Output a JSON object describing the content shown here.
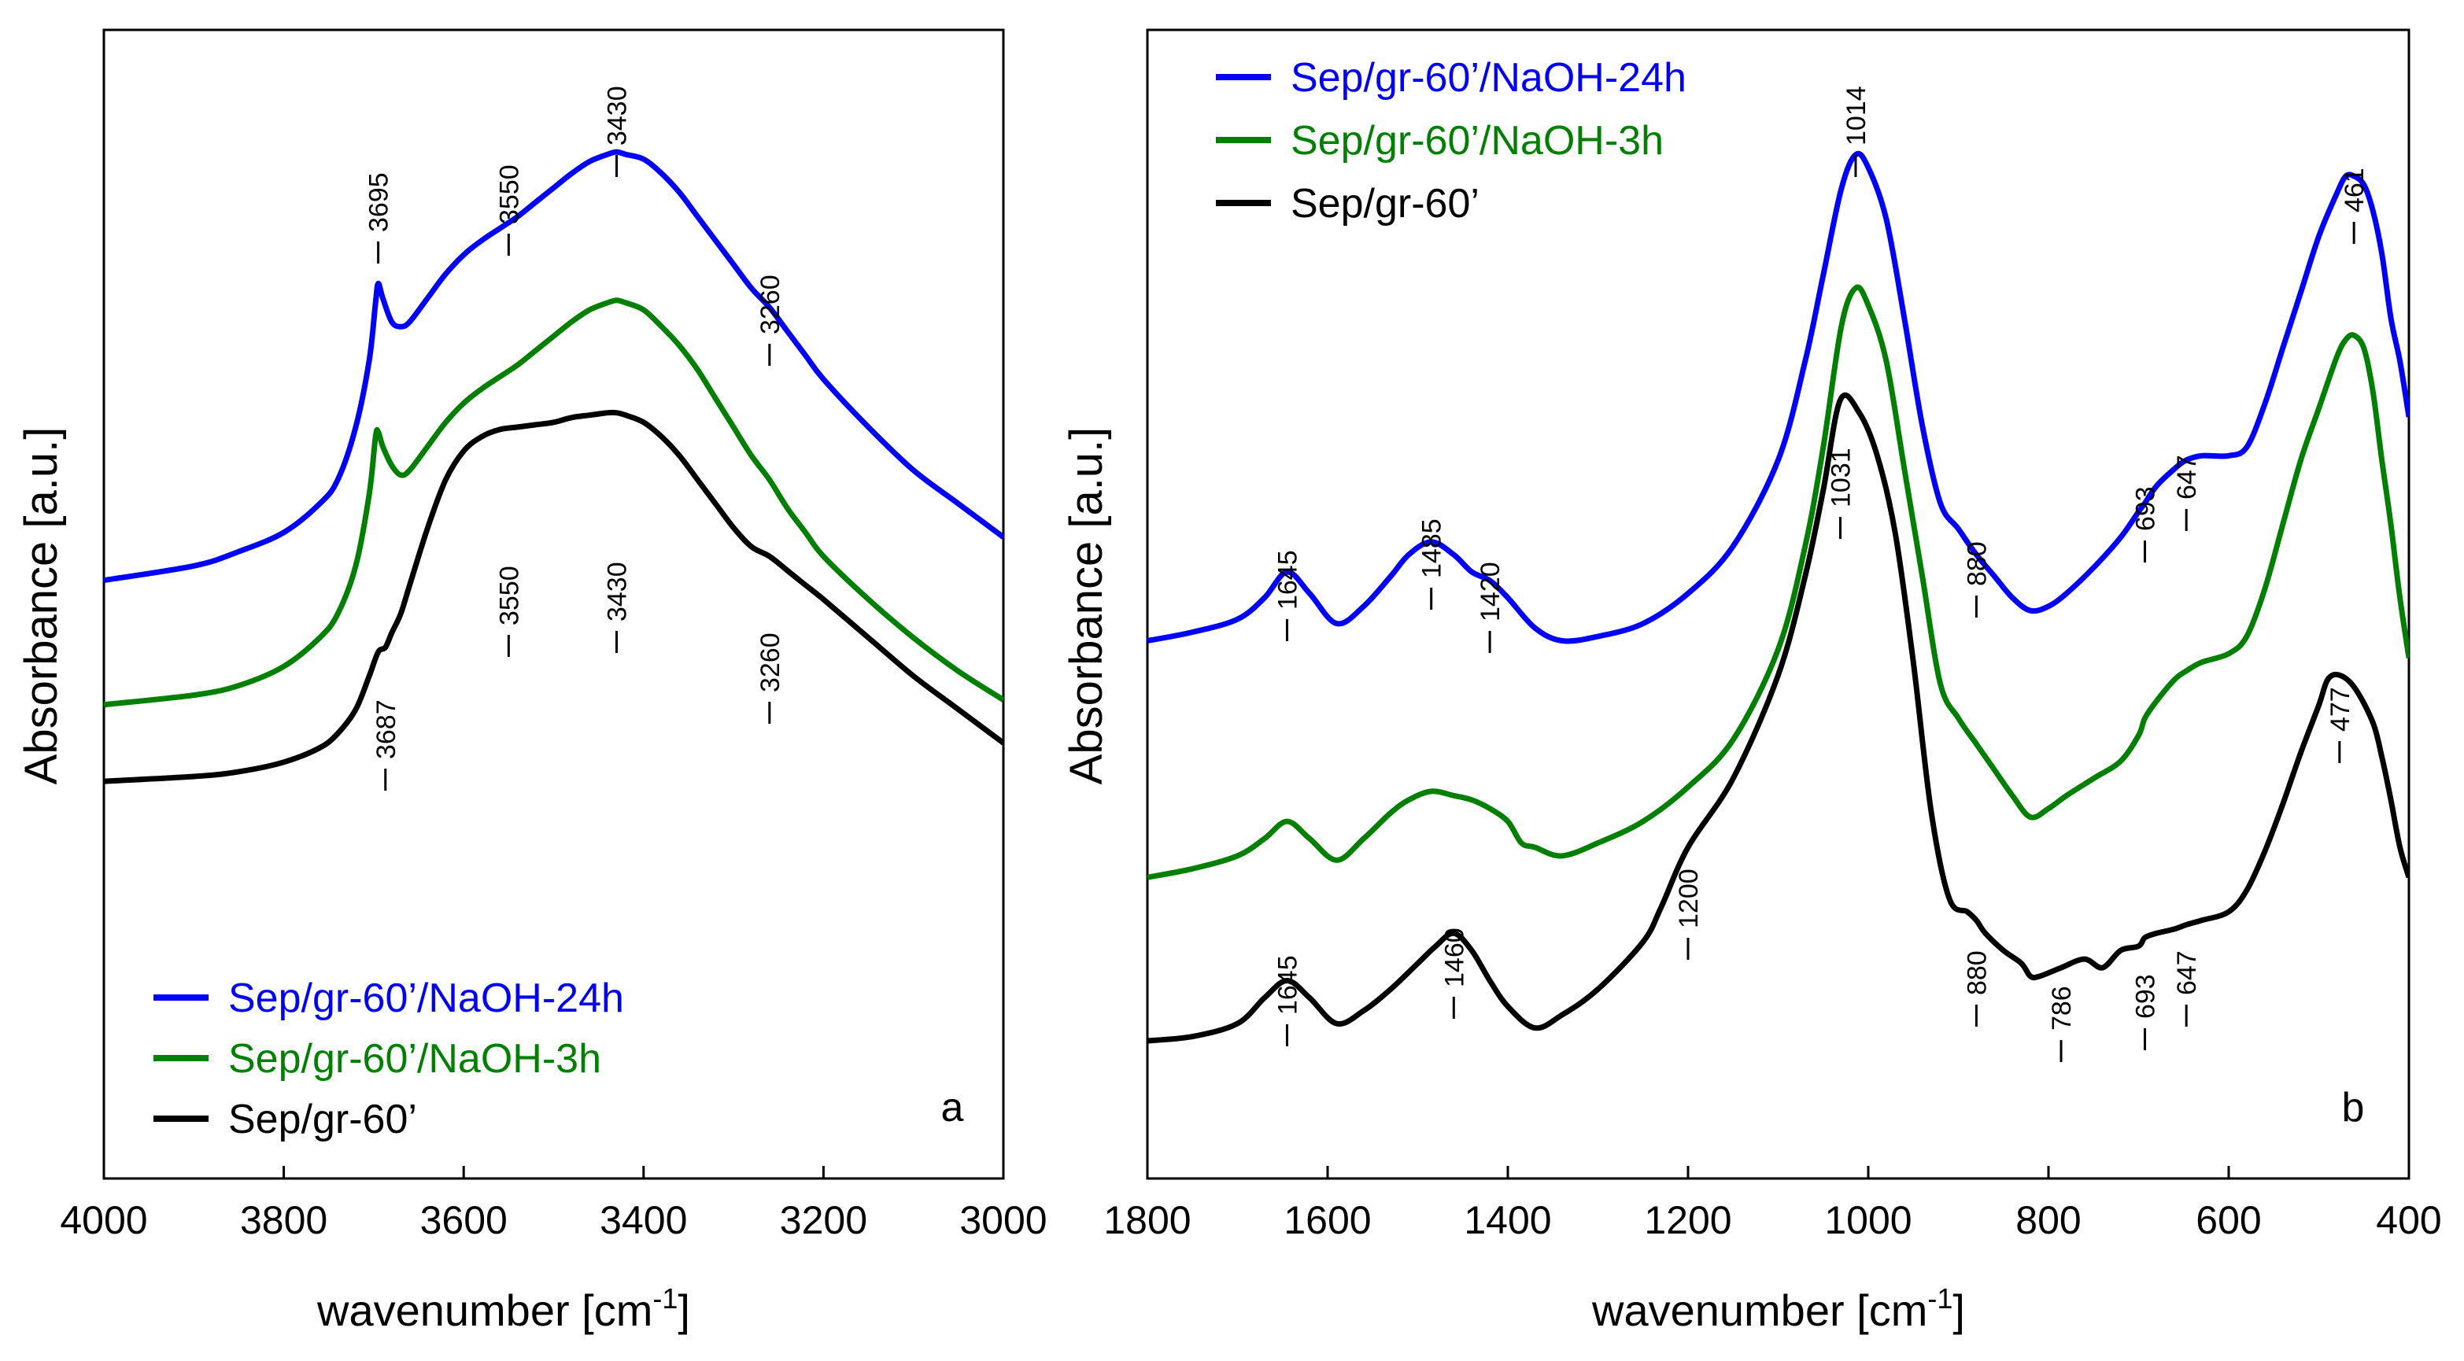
{
  "chart_data": [
    {
      "type": "line",
      "panel_label": "a",
      "xlabel": "wavenumber [cm",
      "xlabel_sup": "-1",
      "xlabel_end": "]",
      "ylabel": "Absorbance [a.u.]",
      "xlim": [
        4000,
        3000
      ],
      "x_reversed": true,
      "y_ticks_shown": false,
      "xticks": [
        "4000",
        "3800",
        "3600",
        "3400",
        "3200",
        "3000"
      ],
      "legend_position": "bottom-left",
      "legend": [
        {
          "label": "Sep/gr-60’/NaOH-24h",
          "color": "#0000ff"
        },
        {
          "label": "Sep/gr-60’/NaOH-3h",
          "color": "#008000"
        },
        {
          "label": "Sep/gr-60’",
          "color": "#000000"
        }
      ],
      "series": [
        {
          "name": "Sep/gr-60’/NaOH-24h",
          "color": "#0000ff",
          "x": [
            4000,
            3900,
            3850,
            3800,
            3760,
            3740,
            3720,
            3705,
            3698,
            3695,
            3690,
            3680,
            3670,
            3660,
            3640,
            3620,
            3600,
            3580,
            3560,
            3540,
            3520,
            3500,
            3480,
            3460,
            3440,
            3430,
            3420,
            3400,
            3380,
            3360,
            3340,
            3320,
            3300,
            3280,
            3260,
            3240,
            3220,
            3200,
            3150,
            3100,
            3050,
            3000
          ],
          "y": [
            0.4,
            0.43,
            0.46,
            0.5,
            0.56,
            0.61,
            0.72,
            0.86,
            0.98,
            1.02,
            0.99,
            0.94,
            0.93,
            0.94,
            0.99,
            1.04,
            1.08,
            1.11,
            1.135,
            1.16,
            1.19,
            1.22,
            1.25,
            1.275,
            1.29,
            1.295,
            1.29,
            1.28,
            1.25,
            1.21,
            1.16,
            1.11,
            1.06,
            1.01,
            0.97,
            0.92,
            0.87,
            0.82,
            0.72,
            0.63,
            0.56,
            0.49
          ]
        },
        {
          "name": "Sep/gr-60’/NaOH-3h",
          "color": "#008000",
          "x": [
            4000,
            3900,
            3850,
            3800,
            3760,
            3740,
            3720,
            3705,
            3698,
            3695,
            3690,
            3680,
            3670,
            3660,
            3640,
            3620,
            3600,
            3580,
            3560,
            3540,
            3520,
            3500,
            3480,
            3460,
            3440,
            3430,
            3420,
            3400,
            3380,
            3360,
            3340,
            3320,
            3300,
            3280,
            3260,
            3240,
            3220,
            3200,
            3150,
            3100,
            3050,
            3000
          ],
          "y": [
            0.14,
            0.16,
            0.18,
            0.22,
            0.28,
            0.33,
            0.43,
            0.58,
            0.7,
            0.71,
            0.68,
            0.64,
            0.62,
            0.63,
            0.68,
            0.73,
            0.77,
            0.8,
            0.825,
            0.85,
            0.88,
            0.91,
            0.94,
            0.965,
            0.98,
            0.985,
            0.98,
            0.965,
            0.93,
            0.89,
            0.84,
            0.78,
            0.72,
            0.66,
            0.61,
            0.55,
            0.5,
            0.45,
            0.36,
            0.28,
            0.21,
            0.15
          ]
        },
        {
          "name": "Sep/gr-60’",
          "color": "#000000",
          "x": [
            4000,
            3900,
            3850,
            3800,
            3760,
            3740,
            3720,
            3705,
            3695,
            3687,
            3680,
            3670,
            3660,
            3640,
            3620,
            3600,
            3580,
            3560,
            3540,
            3520,
            3500,
            3480,
            3460,
            3440,
            3430,
            3420,
            3400,
            3380,
            3360,
            3340,
            3320,
            3300,
            3280,
            3260,
            3240,
            3220,
            3200,
            3150,
            3100,
            3050,
            3000
          ],
          "y": [
            -0.02,
            -0.01,
            0.0,
            0.02,
            0.05,
            0.08,
            0.13,
            0.2,
            0.25,
            0.26,
            0.29,
            0.33,
            0.39,
            0.51,
            0.61,
            0.67,
            0.7,
            0.715,
            0.72,
            0.725,
            0.73,
            0.74,
            0.745,
            0.75,
            0.75,
            0.745,
            0.73,
            0.7,
            0.66,
            0.61,
            0.56,
            0.51,
            0.47,
            0.45,
            0.42,
            0.39,
            0.36,
            0.28,
            0.2,
            0.13,
            0.06
          ]
        }
      ],
      "annotations": [
        {
          "text": "3695",
          "x": 3695,
          "series": 0
        },
        {
          "text": "3550",
          "x": 3550,
          "series": 0
        },
        {
          "text": "3430",
          "x": 3430,
          "series": 0
        },
        {
          "text": "3260",
          "x": 3260,
          "series": 0
        },
        {
          "text": "3687",
          "x": 3687,
          "series": 2
        },
        {
          "text": "3550",
          "x": 3550,
          "series": 2
        },
        {
          "text": "3430",
          "x": 3430,
          "series": 2
        },
        {
          "text": "3260",
          "x": 3260,
          "series": 2
        }
      ]
    },
    {
      "type": "line",
      "panel_label": "b",
      "xlabel": "wavenumber [cm",
      "xlabel_sup": "-1",
      "xlabel_end": "]",
      "ylabel": "Absorbance [a.u.]",
      "xlim": [
        1800,
        400
      ],
      "x_reversed": true,
      "y_ticks_shown": false,
      "xticks": [
        "1800",
        "1600",
        "1400",
        "1200",
        "1000",
        "800",
        "600",
        "400"
      ],
      "legend_position": "top-left",
      "legend": [
        {
          "label": "Sep/gr-60’/NaOH-24h",
          "color": "#0000ff"
        },
        {
          "label": "Sep/gr-60’/NaOH-3h",
          "color": "#008000"
        },
        {
          "label": "Sep/gr-60’",
          "color": "#000000"
        }
      ],
      "series": [
        {
          "name": "Sep/gr-60’/NaOH-24h",
          "color": "#0000ff",
          "x": [
            1800,
            1750,
            1700,
            1670,
            1645,
            1620,
            1590,
            1560,
            1530,
            1510,
            1485,
            1460,
            1440,
            1420,
            1400,
            1370,
            1340,
            1300,
            1250,
            1200,
            1150,
            1100,
            1070,
            1050,
            1030,
            1014,
            1000,
            980,
            960,
            940,
            920,
            900,
            880,
            860,
            840,
            820,
            800,
            780,
            750,
            720,
            700,
            693,
            680,
            660,
            647,
            630,
            600,
            580,
            560,
            540,
            520,
            500,
            480,
            470,
            461,
            450,
            440,
            430,
            420,
            410,
            400
          ],
          "y": [
            0.2,
            0.22,
            0.25,
            0.3,
            0.36,
            0.31,
            0.24,
            0.28,
            0.35,
            0.4,
            0.43,
            0.4,
            0.36,
            0.34,
            0.3,
            0.23,
            0.2,
            0.21,
            0.24,
            0.31,
            0.42,
            0.62,
            0.85,
            1.05,
            1.25,
            1.33,
            1.3,
            1.18,
            0.95,
            0.7,
            0.52,
            0.46,
            0.4,
            0.35,
            0.3,
            0.27,
            0.28,
            0.31,
            0.37,
            0.44,
            0.5,
            0.52,
            0.56,
            0.6,
            0.62,
            0.63,
            0.63,
            0.65,
            0.75,
            0.88,
            1.01,
            1.14,
            1.24,
            1.28,
            1.28,
            1.26,
            1.2,
            1.1,
            0.95,
            0.85,
            0.72
          ]
        },
        {
          "name": "Sep/gr-60’/NaOH-3h",
          "color": "#008000",
          "x": [
            1800,
            1750,
            1700,
            1670,
            1645,
            1620,
            1590,
            1560,
            1530,
            1510,
            1485,
            1460,
            1440,
            1420,
            1400,
            1385,
            1370,
            1340,
            1300,
            1250,
            1200,
            1150,
            1100,
            1070,
            1050,
            1030,
            1014,
            1000,
            980,
            960,
            940,
            920,
            900,
            880,
            860,
            840,
            820,
            800,
            780,
            750,
            720,
            700,
            693,
            680,
            660,
            647,
            630,
            600,
            580,
            560,
            540,
            520,
            500,
            480,
            470,
            461,
            450,
            440,
            430,
            420,
            410,
            400
          ],
          "y": [
            -0.35,
            -0.33,
            -0.3,
            -0.26,
            -0.22,
            -0.26,
            -0.31,
            -0.26,
            -0.2,
            -0.17,
            -0.15,
            -0.16,
            -0.17,
            -0.19,
            -0.22,
            -0.27,
            -0.28,
            -0.3,
            -0.27,
            -0.22,
            -0.14,
            -0.03,
            0.18,
            0.42,
            0.65,
            0.93,
            1.02,
            0.98,
            0.85,
            0.6,
            0.35,
            0.1,
            0.02,
            -0.04,
            -0.1,
            -0.16,
            -0.21,
            -0.19,
            -0.16,
            -0.12,
            -0.08,
            -0.02,
            0.02,
            0.06,
            0.11,
            0.13,
            0.15,
            0.17,
            0.21,
            0.32,
            0.47,
            0.62,
            0.74,
            0.86,
            0.9,
            0.91,
            0.88,
            0.78,
            0.62,
            0.47,
            0.3,
            0.16
          ]
        },
        {
          "name": "Sep/gr-60’",
          "color": "#000000",
          "x": [
            1800,
            1750,
            1700,
            1670,
            1645,
            1620,
            1590,
            1560,
            1530,
            1500,
            1480,
            1460,
            1440,
            1420,
            1400,
            1370,
            1340,
            1300,
            1250,
            1230,
            1200,
            1150,
            1100,
            1070,
            1050,
            1031,
            1010,
            990,
            970,
            950,
            930,
            910,
            890,
            880,
            870,
            850,
            830,
            820,
            810,
            786,
            760,
            740,
            720,
            700,
            693,
            680,
            660,
            647,
            630,
            600,
            580,
            560,
            540,
            520,
            500,
            490,
            477,
            460,
            440,
            430,
            420,
            410,
            400
          ],
          "y": [
            -0.73,
            -0.72,
            -0.69,
            -0.63,
            -0.59,
            -0.63,
            -0.69,
            -0.66,
            -0.61,
            -0.55,
            -0.51,
            -0.48,
            -0.52,
            -0.59,
            -0.65,
            -0.7,
            -0.67,
            -0.61,
            -0.5,
            -0.42,
            -0.28,
            -0.12,
            0.12,
            0.35,
            0.55,
            0.76,
            0.73,
            0.63,
            0.45,
            0.15,
            -0.2,
            -0.4,
            -0.43,
            -0.45,
            -0.48,
            -0.52,
            -0.55,
            -0.58,
            -0.58,
            -0.56,
            -0.54,
            -0.56,
            -0.52,
            -0.51,
            -0.49,
            -0.48,
            -0.47,
            -0.46,
            -0.45,
            -0.43,
            -0.38,
            -0.29,
            -0.18,
            -0.06,
            0.05,
            0.11,
            0.12,
            0.09,
            0.01,
            -0.07,
            -0.17,
            -0.28,
            -0.35
          ]
        }
      ],
      "annotations": [
        {
          "text": "1014",
          "x": 1014,
          "series": 0
        },
        {
          "text": "461",
          "x": 461,
          "series": 0
        },
        {
          "text": "1645",
          "x": 1645,
          "series": 0
        },
        {
          "text": "1485",
          "x": 1485,
          "series": 0
        },
        {
          "text": "1420",
          "x": 1420,
          "series": 0
        },
        {
          "text": "880",
          "x": 880,
          "series": 0
        },
        {
          "text": "693",
          "x": 693,
          "series": 0
        },
        {
          "text": "647",
          "x": 647,
          "series": 0
        },
        {
          "text": "1031",
          "x": 1031,
          "series": 2
        },
        {
          "text": "1645",
          "x": 1645,
          "series": 2
        },
        {
          "text": "1460",
          "x": 1460,
          "series": 2
        },
        {
          "text": "1200",
          "x": 1200,
          "series": 2
        },
        {
          "text": "880",
          "x": 880,
          "series": 2
        },
        {
          "text": "786",
          "x": 786,
          "series": 2
        },
        {
          "text": "693",
          "x": 693,
          "series": 2
        },
        {
          "text": "647",
          "x": 647,
          "series": 2
        },
        {
          "text": "477",
          "x": 477,
          "series": 2
        }
      ]
    }
  ]
}
